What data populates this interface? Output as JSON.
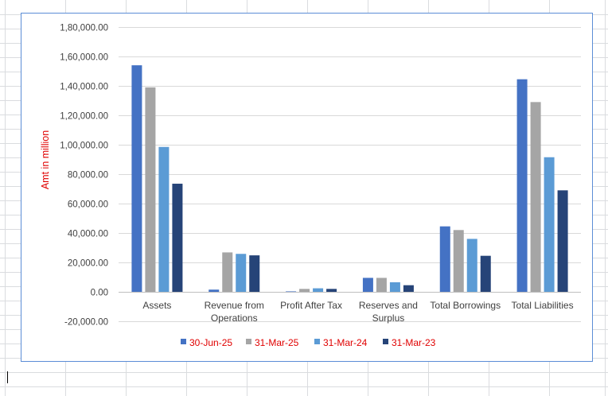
{
  "chart_data": {
    "type": "bar",
    "title": "",
    "xlabel": "",
    "ylabel": "Amt in million",
    "ylim": [
      -20000,
      180000
    ],
    "yticks": [
      -20000,
      0,
      20000,
      40000,
      60000,
      80000,
      100000,
      120000,
      140000,
      160000,
      180000
    ],
    "ytick_labels": [
      "-20,000.00",
      "0.00",
      "20,000.00",
      "40,000.00",
      "60,000.00",
      "80,000.00",
      "1,00,000.00",
      "1,20,000.00",
      "1,40,000.00",
      "1,60,000.00",
      "1,80,000.00"
    ],
    "grid": true,
    "legend_position": "bottom",
    "categories": [
      [
        "Assets"
      ],
      [
        "Revenue from",
        "Operations"
      ],
      [
        "Profit After Tax"
      ],
      [
        "Reserves and",
        "Surplus"
      ],
      [
        "Total Borrowings"
      ],
      [
        "Total Liabilities"
      ]
    ],
    "series": [
      {
        "name": "30-Jun-25",
        "color": "#4472c4",
        "values": [
          154000,
          1500,
          300,
          9500,
          44500,
          144500
        ]
      },
      {
        "name": "31-Mar-25",
        "color": "#a5a5a5",
        "values": [
          139000,
          26800,
          2000,
          9500,
          42000,
          129000
        ]
      },
      {
        "name": "31-Mar-24",
        "color": "#5b9bd5",
        "values": [
          98500,
          25800,
          2400,
          6500,
          36000,
          91500
        ]
      },
      {
        "name": "31-Mar-23",
        "color": "#264478",
        "values": [
          73500,
          24800,
          2000,
          4500,
          24500,
          69000
        ]
      }
    ],
    "axis_label_color": "#e00000",
    "legend_text_color": "#e00000"
  }
}
